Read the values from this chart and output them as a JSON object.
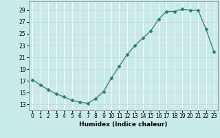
{
  "x": [
    0,
    1,
    2,
    3,
    4,
    5,
    6,
    7,
    8,
    9,
    10,
    11,
    12,
    13,
    14,
    15,
    16,
    17,
    18,
    19,
    20,
    21,
    22,
    23
  ],
  "y": [
    17.2,
    16.3,
    15.5,
    14.8,
    14.3,
    13.7,
    13.4,
    13.2,
    14.0,
    15.2,
    17.5,
    19.5,
    21.5,
    23.0,
    24.3,
    25.5,
    27.5,
    28.8,
    28.8,
    29.2,
    29.0,
    29.0,
    25.8,
    22.0
  ],
  "xlabel": "Humidex (Indice chaleur)",
  "xlim": [
    -0.5,
    23.5
  ],
  "ylim": [
    12,
    30.5
  ],
  "yticks": [
    13,
    15,
    17,
    19,
    21,
    23,
    25,
    27,
    29
  ],
  "xticks": [
    0,
    1,
    2,
    3,
    4,
    5,
    6,
    7,
    8,
    9,
    10,
    11,
    12,
    13,
    14,
    15,
    16,
    17,
    18,
    19,
    20,
    21,
    22,
    23
  ],
  "line_color": "#2e7d6e",
  "marker": "D",
  "marker_size": 2.5,
  "bg_color": "#c8ebe8",
  "grid_color": "#e0d0d0",
  "tick_fontsize": 5.5,
  "label_fontsize": 6.5
}
